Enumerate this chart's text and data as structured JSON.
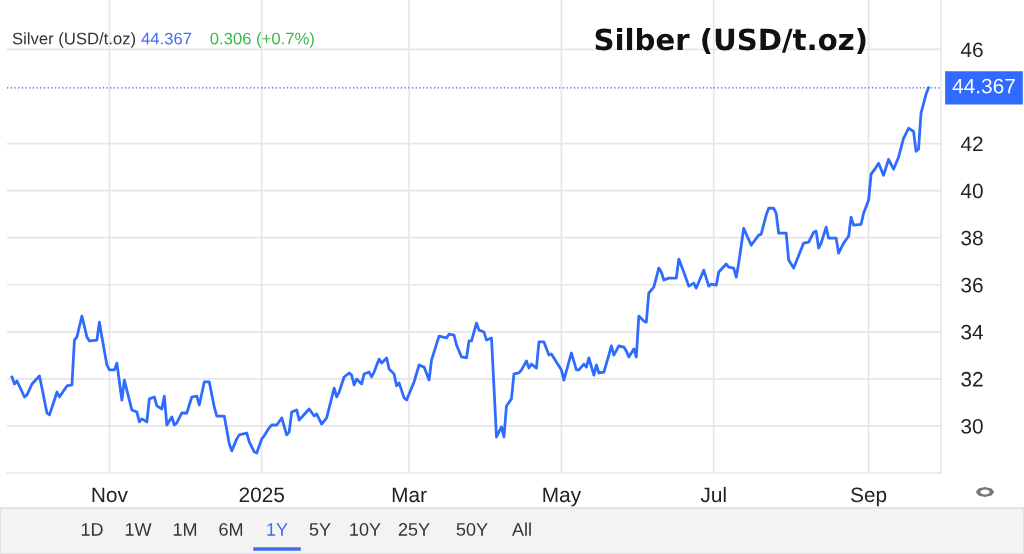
{
  "chart_data": {
    "type": "line",
    "title": "Silber (USD/t.oz)",
    "annotations": [
      "Silver (USD/t.oz)",
      "44.367",
      "0.306 (+0.7%)",
      "1D",
      "1W",
      "1M",
      "6M",
      "1Y",
      "5Y",
      "10Y",
      "25Y",
      "50Y",
      "All"
    ],
    "x": [
      "2024-09-23",
      "2024-09-24",
      "2024-09-25",
      "2024-09-28",
      "2024-09-29",
      "2024-10-01",
      "2024-10-04",
      "2024-10-05",
      "2024-10-07",
      "2024-10-08",
      "2024-10-10",
      "2024-10-11",
      "2024-10-12",
      "2024-10-15",
      "2024-10-17",
      "2024-10-18",
      "2024-10-19",
      "2024-10-21",
      "2024-10-23",
      "2024-10-24",
      "2024-10-27",
      "2024-10-28",
      "2024-10-29",
      "2024-10-31",
      "2024-11-01",
      "2024-11-03",
      "2024-11-04",
      "2024-11-06",
      "2024-11-07",
      "2024-11-09",
      "2024-11-10",
      "2024-11-12",
      "2024-11-13",
      "2024-11-14",
      "2024-11-16",
      "2024-11-17",
      "2024-11-19",
      "2024-11-20",
      "2024-11-22",
      "2024-11-23",
      "2024-11-24",
      "2024-11-26",
      "2024-11-27",
      "2024-11-28",
      "2024-11-30",
      "2024-12-02",
      "2024-12-04",
      "2024-12-06",
      "2024-12-07",
      "2024-12-09",
      "2024-12-11",
      "2024-12-13",
      "2024-12-14",
      "2024-12-17",
      "2024-12-19",
      "2024-12-20",
      "2024-12-22",
      "2024-12-23",
      "2024-12-26",
      "2024-12-27",
      "2024-12-29",
      "2024-12-30",
      "2025-01-01",
      "2025-01-02",
      "2025-01-04",
      "2025-01-05",
      "2025-01-07",
      "2025-01-09",
      "2025-01-11",
      "2025-01-12",
      "2025-01-13",
      "2025-01-15",
      "2025-01-16",
      "2025-01-20",
      "2025-01-22",
      "2025-01-23",
      "2025-01-25",
      "2025-01-27",
      "2025-01-30",
      "2025-01-31",
      "2025-02-01",
      "2025-02-03",
      "2025-02-05",
      "2025-02-06",
      "2025-02-07",
      "2025-02-08",
      "2025-02-10",
      "2025-02-11",
      "2025-02-13",
      "2025-02-14",
      "2025-02-15",
      "2025-02-17",
      "2025-02-18",
      "2025-02-20",
      "2025-02-21",
      "2025-02-23",
      "2025-02-24",
      "2025-02-25",
      "2025-02-27",
      "2025-02-28",
      "2025-03-02",
      "2025-03-03",
      "2025-03-05",
      "2025-03-07",
      "2025-03-09",
      "2025-03-10",
      "2025-03-13",
      "2025-03-16",
      "2025-03-17",
      "2025-03-19",
      "2025-03-20",
      "2025-03-22",
      "2025-03-24",
      "2025-03-25",
      "2025-03-26",
      "2025-03-28",
      "2025-03-29",
      "2025-03-31",
      "2025-04-01",
      "2025-04-03",
      "2025-04-05",
      "2025-04-07",
      "2025-04-08",
      "2025-04-09",
      "2025-04-11",
      "2025-04-12",
      "2025-04-14",
      "2025-04-15",
      "2025-04-17",
      "2025-04-18",
      "2025-04-19",
      "2025-04-21",
      "2025-04-22",
      "2025-04-24",
      "2025-04-26",
      "2025-04-27",
      "2025-04-28",
      "2025-04-30",
      "2025-05-01",
      "2025-05-02",
      "2025-05-05",
      "2025-05-07",
      "2025-05-08",
      "2025-05-10",
      "2025-05-11",
      "2025-05-12",
      "2025-05-14",
      "2025-05-15",
      "2025-05-16",
      "2025-05-18",
      "2025-05-20",
      "2025-05-21",
      "2025-05-22",
      "2025-05-24",
      "2025-05-26",
      "2025-05-27",
      "2025-05-28",
      "2025-05-30",
      "2025-05-31",
      "2025-06-01",
      "2025-06-03",
      "2025-06-04",
      "2025-06-05",
      "2025-06-07",
      "2025-06-09",
      "2025-06-10",
      "2025-06-11",
      "2025-06-13",
      "2025-06-16",
      "2025-06-17",
      "2025-06-19",
      "2025-06-21",
      "2025-06-23",
      "2025-06-24",
      "2025-06-27",
      "2025-06-29",
      "2025-06-30",
      "2025-07-02",
      "2025-07-03",
      "2025-07-06",
      "2025-07-07",
      "2025-07-09",
      "2025-07-10",
      "2025-07-11",
      "2025-07-13",
      "2025-07-16",
      "2025-07-19",
      "2025-07-20",
      "2025-07-22",
      "2025-07-23",
      "2025-07-25",
      "2025-07-26",
      "2025-07-27",
      "2025-07-30",
      "2025-07-31",
      "2025-08-02",
      "2025-08-06",
      "2025-08-08",
      "2025-08-10",
      "2025-08-11",
      "2025-08-12",
      "2025-08-13",
      "2025-08-15",
      "2025-08-16",
      "2025-08-19",
      "2025-08-20",
      "2025-08-22",
      "2025-08-24",
      "2025-08-25",
      "2025-08-26",
      "2025-08-29",
      "2025-08-30",
      "2025-09-01",
      "2025-09-02",
      "2025-09-04",
      "2025-09-05",
      "2025-09-07",
      "2025-09-09",
      "2025-09-11",
      "2025-09-13",
      "2025-09-15",
      "2025-09-17",
      "2025-09-19",
      "2025-09-20",
      "2025-09-21",
      "2025-09-22",
      "2025-09-24",
      "2025-09-25"
    ],
    "series": [
      {
        "color": "#2f6bff",
        "values": [
          32.08,
          31.78,
          31.91,
          31.23,
          31.32,
          31.78,
          32.12,
          31.61,
          30.55,
          30.47,
          31.1,
          31.44,
          31.23,
          31.7,
          31.74,
          33.65,
          33.78,
          34.67,
          33.78,
          33.61,
          33.65,
          34.41,
          33.78,
          32.59,
          32.38,
          32.38,
          32.67,
          31.1,
          31.95,
          31.1,
          30.68,
          30.59,
          30.17,
          30.3,
          30.17,
          31.15,
          31.23,
          30.85,
          30.72,
          31.27,
          30.04,
          30.38,
          30.04,
          30.13,
          30.55,
          30.55,
          31.23,
          31.27,
          30.89,
          31.87,
          31.87,
          30.81,
          30.42,
          30.42,
          29.24,
          28.94,
          29.45,
          29.62,
          29.7,
          29.32,
          28.9,
          28.85,
          29.45,
          29.58,
          29.92,
          30.04,
          30.04,
          30.34,
          29.62,
          29.75,
          30.59,
          30.68,
          30.25,
          30.72,
          30.42,
          30.51,
          30.08,
          30.34,
          31.61,
          31.23,
          31.44,
          32.08,
          32.25,
          32.16,
          31.74,
          31.99,
          31.78,
          32.21,
          32.29,
          32.08,
          32.29,
          32.84,
          32.67,
          32.89,
          32.42,
          32.21,
          31.7,
          31.83,
          31.19,
          31.1,
          31.61,
          31.87,
          32.59,
          32.5,
          31.95,
          32.8,
          33.82,
          33.74,
          33.9,
          33.86,
          33.44,
          32.93,
          32.89,
          33.61,
          33.61,
          34.37,
          34.07,
          33.99,
          33.65,
          33.74,
          29.53,
          29.96,
          29.53,
          30.85,
          31.15,
          32.21,
          32.25,
          32.38,
          32.76,
          32.46,
          32.63,
          32.46,
          33.57,
          33.57,
          33.01,
          33.06,
          32.89,
          32.55,
          32.38,
          31.95,
          33.1,
          32.38,
          32.38,
          32.63,
          32.5,
          32.89,
          32.16,
          32.59,
          32.25,
          32.29,
          33.01,
          33.4,
          33.01,
          33.4,
          33.35,
          33.18,
          32.93,
          33.27,
          32.93,
          34.67,
          34.46,
          34.41,
          35.65,
          35.9,
          36.71,
          36.54,
          36.2,
          36.28,
          36.28,
          37.09,
          36.54,
          35.94,
          36.07,
          35.86,
          36.62,
          35.94,
          36.03,
          35.98,
          36.54,
          36.88,
          36.75,
          36.71,
          36.32,
          36.92,
          38.4,
          37.68,
          38.11,
          38.15,
          38.96,
          39.25,
          39.25,
          39.04,
          38.19,
          38.19,
          37.05,
          36.71,
          37.77,
          37.81,
          38.23,
          38.28,
          37.56,
          37.77,
          38.45,
          37.98,
          37.98,
          37.34,
          37.77,
          38.06,
          38.87,
          38.53,
          38.57,
          39.04,
          39.59,
          40.7,
          40.99,
          41.16,
          40.65,
          41.33,
          40.91,
          41.42,
          42.22,
          42.65,
          42.52,
          41.67,
          41.76,
          43.29,
          44.09,
          44.367
        ]
      }
    ],
    "xlim": [
      "2024-09-21",
      "2025-09-30"
    ],
    "xticks": [
      {
        "value": "2024-11-01",
        "label": "Nov"
      },
      {
        "value": "2025-01-01",
        "label": "2025"
      },
      {
        "value": "2025-03-01",
        "label": "Mar"
      },
      {
        "value": "2025-05-01",
        "label": "May"
      },
      {
        "value": "2025-07-01",
        "label": "Jul"
      },
      {
        "value": "2025-09-01",
        "label": "Sep"
      }
    ],
    "ylim": [
      28,
      48.1
    ],
    "yticks": [
      30,
      32,
      34,
      36,
      38,
      40,
      42,
      46
    ],
    "ref_lines": [
      {
        "axis": "y",
        "value": 44.367,
        "label": "44.367",
        "color": "#2f6bff",
        "line_style": "dotted"
      }
    ],
    "grid": true,
    "marker": "none",
    "line_style": "solid"
  }
}
